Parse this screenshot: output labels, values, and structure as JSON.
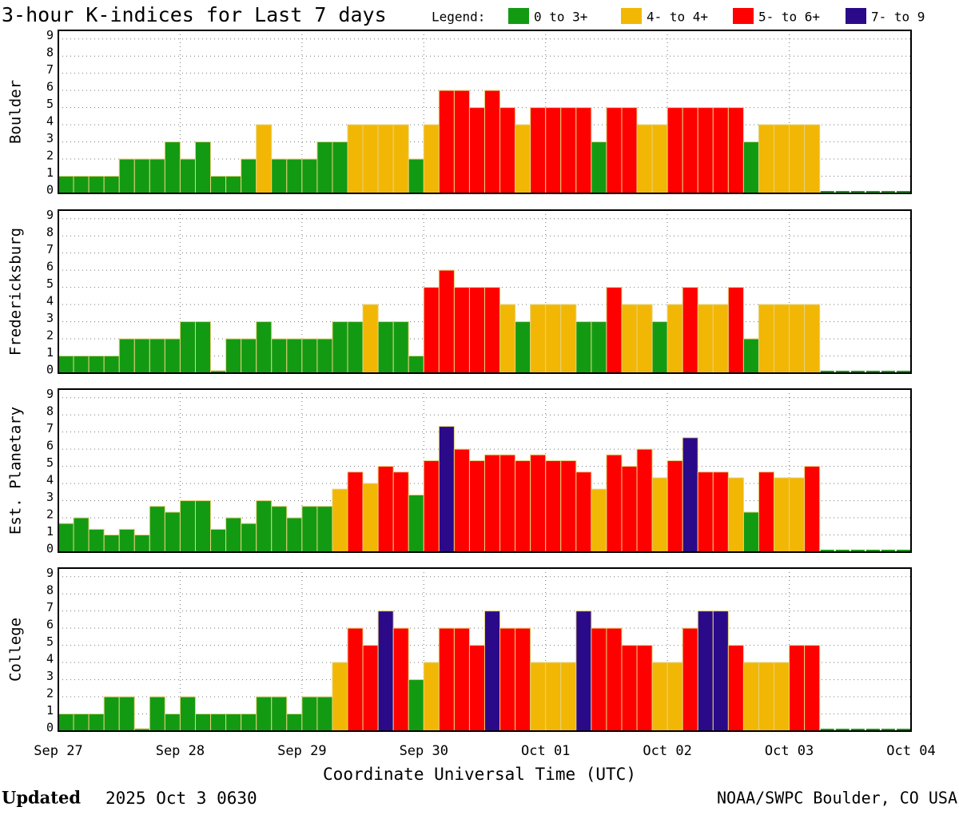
{
  "title": "3-hour K-indices for Last 7 days",
  "legend": {
    "title": "Legend:",
    "items": [
      {
        "name": "0 to 3+",
        "color": "#139a13",
        "min": 0
      },
      {
        "name": "4- to 4+",
        "color": "#f2b705",
        "min": 3.67
      },
      {
        "name": "5- to 6+",
        "color": "#ff0000",
        "min": 4.67
      },
      {
        "name": "7- to 9",
        "color": "#2a0a88",
        "min": 6.67
      }
    ]
  },
  "x_label": "Coordinate Universal Time (UTC)",
  "x_ticks": [
    "Sep 27",
    "Sep 28",
    "Sep 29",
    "Sep 30",
    "Oct 01",
    "Oct 02",
    "Oct 03",
    "Oct 04"
  ],
  "footer": {
    "updated_label": "Updated",
    "updated": "2025 Oct  3 0630",
    "source": "NOAA/SWPC Boulder, CO USA"
  },
  "chart_data": [
    {
      "type": "bar",
      "y_label": "Boulder",
      "ylim": [
        0,
        9.5
      ],
      "yticks": [
        0,
        1,
        2,
        3,
        4,
        5,
        6,
        7,
        8,
        9
      ],
      "grid": true,
      "values": [
        1,
        1,
        1,
        1,
        2,
        2,
        2,
        3,
        2,
        3,
        1,
        1,
        2,
        4,
        2,
        2,
        2,
        3,
        3,
        4,
        4,
        4,
        4,
        2,
        4,
        6,
        6,
        5,
        6,
        5,
        4,
        5,
        5,
        5,
        5,
        3,
        5,
        5,
        4,
        4,
        5,
        5,
        5,
        5,
        5,
        3,
        4,
        4,
        4,
        4,
        null,
        null,
        null,
        null,
        null,
        null
      ]
    },
    {
      "type": "bar",
      "y_label": "Fredericksburg",
      "ylim": [
        0,
        9.5
      ],
      "yticks": [
        0,
        1,
        2,
        3,
        4,
        5,
        6,
        7,
        8,
        9
      ],
      "grid": true,
      "values": [
        1,
        1,
        1,
        1,
        2,
        2,
        2,
        2,
        3,
        3,
        0,
        2,
        2,
        3,
        2,
        2,
        2,
        2,
        3,
        3,
        4,
        3,
        3,
        1,
        5,
        6,
        5,
        5,
        5,
        4,
        3,
        4,
        4,
        4,
        3,
        3,
        5,
        4,
        4,
        3,
        4,
        5,
        4,
        4,
        5,
        2,
        4,
        4,
        4,
        4,
        null,
        null,
        null,
        null,
        null,
        null
      ]
    },
    {
      "type": "bar",
      "y_label": "Est. Planetary",
      "ylim": [
        0,
        9.5
      ],
      "yticks": [
        0,
        1,
        2,
        3,
        4,
        5,
        6,
        7,
        8,
        9
      ],
      "grid": true,
      "values": [
        1.67,
        2,
        1.33,
        1,
        1.33,
        1,
        2.67,
        2.33,
        3,
        3,
        1.33,
        2,
        1.67,
        3,
        2.67,
        2,
        2.67,
        2.67,
        3.67,
        4.67,
        4,
        5,
        4.67,
        3.33,
        5.33,
        7.33,
        6,
        5.33,
        5.67,
        5.67,
        5.33,
        5.67,
        5.33,
        5.33,
        4.67,
        3.67,
        5.67,
        5,
        6,
        4.33,
        5.33,
        6.67,
        4.67,
        4.67,
        4.33,
        2.33,
        4.67,
        4.33,
        4.33,
        5,
        null,
        null,
        null,
        null,
        null,
        null
      ]
    },
    {
      "type": "bar",
      "y_label": "College",
      "ylim": [
        0,
        9.5
      ],
      "yticks": [
        0,
        1,
        2,
        3,
        4,
        5,
        6,
        7,
        8,
        9
      ],
      "grid": true,
      "values": [
        1,
        1,
        1,
        2,
        2,
        0,
        2,
        1,
        2,
        1,
        1,
        1,
        1,
        2,
        2,
        1,
        2,
        2,
        4,
        6,
        5,
        7,
        6,
        3,
        4,
        6,
        6,
        5,
        7,
        6,
        6,
        4,
        4,
        4,
        7,
        6,
        6,
        5,
        5,
        4,
        4,
        6,
        7,
        7,
        5,
        4,
        4,
        4,
        5,
        5,
        null,
        null,
        null,
        null,
        null,
        null
      ]
    }
  ]
}
